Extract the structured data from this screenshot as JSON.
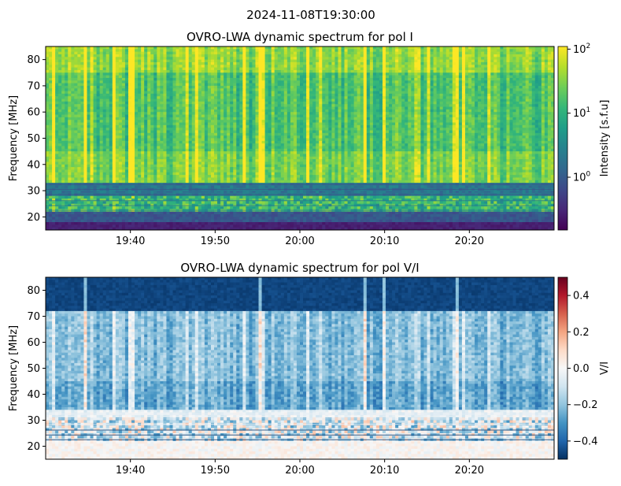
{
  "figure": {
    "suptitle": "2024-11-08T19:30:00"
  },
  "colors": {
    "viridis": [
      "#440154",
      "#482878",
      "#3e4989",
      "#31688e",
      "#26828e",
      "#1f9e89",
      "#35b779",
      "#6ece58",
      "#b5de2b",
      "#fde725"
    ],
    "rdbu_r": [
      "#053061",
      "#2166ac",
      "#4393c3",
      "#92c5de",
      "#d1e5f0",
      "#f7f7f7",
      "#fddbc7",
      "#f4a582",
      "#d6604d",
      "#b2182b",
      "#67001f"
    ]
  },
  "chart_data": [
    {
      "type": "heatmap",
      "title": "OVRO-LWA dynamic spectrum for pol I",
      "xlabel": "",
      "ylabel": "Frequency [MHz]",
      "x_range": [
        "19:30",
        "20:30"
      ],
      "xticks": [
        "19:40",
        "19:50",
        "20:00",
        "20:10",
        "20:20"
      ],
      "ylim": [
        15,
        85
      ],
      "yticks": [
        "20",
        "30",
        "40",
        "50",
        "60",
        "70",
        "80"
      ],
      "colormap": "viridis",
      "colorbar": {
        "label": "Intensity [s.f.u]",
        "scale": "log",
        "range": [
          0.15,
          110
        ],
        "ticks": [
          {
            "value": 1,
            "base": "10",
            "exp": "0"
          },
          {
            "value": 10,
            "base": "10",
            "exp": "1"
          },
          {
            "value": 100,
            "base": "10",
            "exp": "2"
          }
        ]
      }
    },
    {
      "type": "heatmap",
      "title": "OVRO-LWA dynamic spectrum for pol V/I",
      "xlabel": "",
      "ylabel": "Frequency [MHz]",
      "x_range": [
        "19:30",
        "20:30"
      ],
      "xticks": [
        "19:40",
        "19:50",
        "20:00",
        "20:10",
        "20:20"
      ],
      "ylim": [
        15,
        85
      ],
      "yticks": [
        "20",
        "30",
        "40",
        "50",
        "60",
        "70",
        "80"
      ],
      "colormap": "RdBu_r",
      "colorbar": {
        "label": "V/I",
        "scale": "linear",
        "range": [
          -0.5,
          0.5
        ],
        "ticks": [
          "0.4",
          "0.2",
          "0.0",
          "−0.2",
          "−0.4"
        ],
        "tick_values": [
          0.4,
          0.2,
          0.0,
          -0.2,
          -0.4
        ]
      }
    }
  ]
}
